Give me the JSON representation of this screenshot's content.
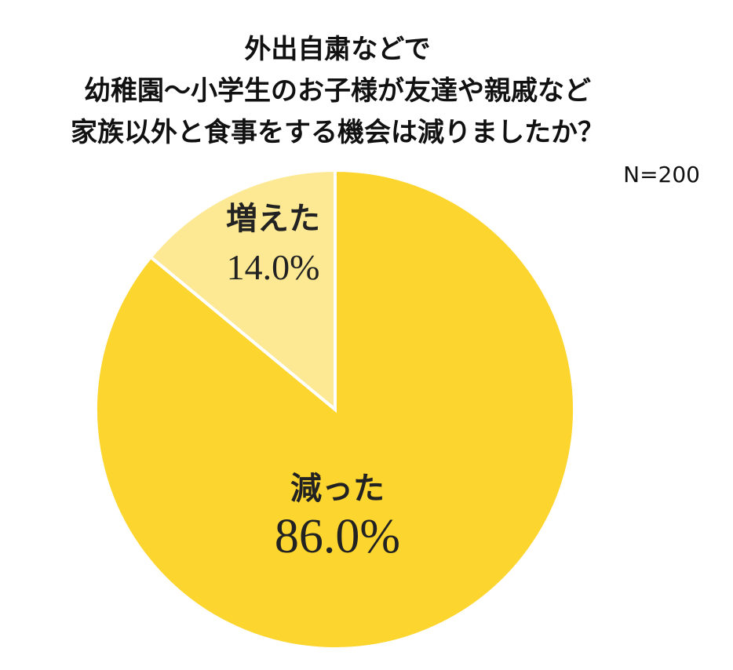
{
  "chart_data": {
    "type": "pie",
    "title": [
      "外出自粛などで",
      "幼稚園～小学生のお子様が友達や親戚など",
      "家族以外と食事をする機会は減りましたか？"
    ],
    "annotation": "N=200",
    "categories": [
      "減った",
      "増えた"
    ],
    "values": [
      86,
      14
    ],
    "value_labels": [
      "86.0%",
      "14.0%"
    ],
    "colors": [
      "#fcd52f",
      "#fde993"
    ]
  }
}
